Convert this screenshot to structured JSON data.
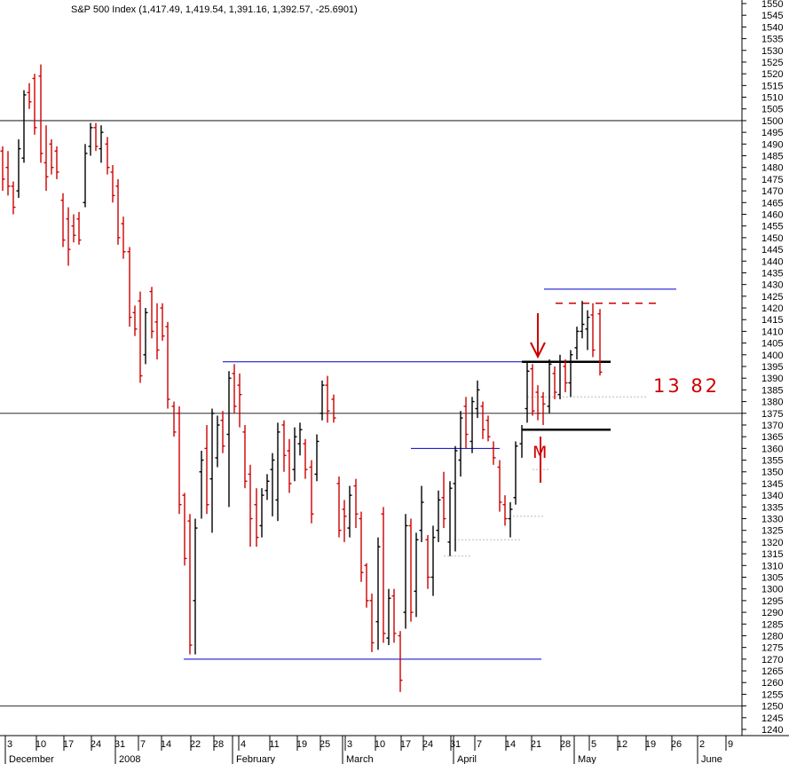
{
  "title": "S&P 500 Index (1,417.49, 1,419.54, 1,391.16, 1,392.57, -25.6901)",
  "chart_data": {
    "type": "ohlc",
    "title": "S&P 500 Index (1,417.49, 1,419.54, 1,391.16, 1,392.57, -25.6901)",
    "ylim": [
      1238,
      1552
    ],
    "y_ticks": [
      1240,
      1245,
      1250,
      1255,
      1260,
      1265,
      1270,
      1275,
      1280,
      1285,
      1290,
      1295,
      1300,
      1305,
      1310,
      1315,
      1320,
      1325,
      1330,
      1335,
      1340,
      1345,
      1350,
      1355,
      1360,
      1365,
      1370,
      1375,
      1380,
      1385,
      1390,
      1395,
      1400,
      1405,
      1410,
      1415,
      1420,
      1425,
      1430,
      1435,
      1440,
      1445,
      1450,
      1455,
      1460,
      1465,
      1470,
      1475,
      1480,
      1485,
      1490,
      1495,
      1500,
      1505,
      1510,
      1515,
      1520,
      1525,
      1530,
      1535,
      1540,
      1545,
      1550
    ],
    "x_ticks": [
      "3",
      "10",
      "17",
      "24",
      "31",
      "7",
      "14",
      "22",
      "28",
      "4",
      "11",
      "19",
      "25",
      "3",
      "10",
      "17",
      "24",
      "31",
      "7",
      "14",
      "21",
      "28",
      "5",
      "12",
      "19",
      "26",
      "2",
      "9"
    ],
    "month_labels": [
      "December",
      "2008",
      "February",
      "March",
      "April",
      "May",
      "June"
    ],
    "colors": {
      "up": "#000000",
      "down": "#cc0000",
      "line": "#0000cc",
      "ref": "#555555"
    },
    "bars": [
      {
        "x": 3,
        "o": 1487,
        "h": 1489,
        "l": 1470,
        "c": 1475
      },
      {
        "x": 9,
        "o": 1480,
        "h": 1487,
        "l": 1468,
        "c": 1472
      },
      {
        "x": 15,
        "o": 1472,
        "h": 1474,
        "l": 1460,
        "c": 1463
      },
      {
        "x": 21,
        "o": 1470,
        "h": 1492,
        "l": 1467,
        "c": 1488
      },
      {
        "x": 27,
        "o": 1484,
        "h": 1513,
        "l": 1482,
        "c": 1511
      },
      {
        "x": 33,
        "o": 1512,
        "h": 1516,
        "l": 1505,
        "c": 1508
      },
      {
        "x": 39,
        "o": 1518,
        "h": 1520,
        "l": 1494,
        "c": 1497
      },
      {
        "x": 46,
        "o": 1519,
        "h": 1524,
        "l": 1482,
        "c": 1486
      },
      {
        "x": 52,
        "o": 1482,
        "h": 1498,
        "l": 1470,
        "c": 1476
      },
      {
        "x": 58,
        "o": 1490,
        "h": 1492,
        "l": 1477,
        "c": 1480
      },
      {
        "x": 64,
        "o": 1487,
        "h": 1489,
        "l": 1475,
        "c": 1478
      },
      {
        "x": 71,
        "o": 1466,
        "h": 1469,
        "l": 1446,
        "c": 1449
      },
      {
        "x": 77,
        "o": 1458,
        "h": 1463,
        "l": 1438,
        "c": 1445
      },
      {
        "x": 83,
        "o": 1455,
        "h": 1460,
        "l": 1448,
        "c": 1451
      },
      {
        "x": 89,
        "o": 1458,
        "h": 1461,
        "l": 1447,
        "c": 1449
      },
      {
        "x": 96,
        "o": 1465,
        "h": 1490,
        "l": 1463,
        "c": 1486
      },
      {
        "x": 102,
        "o": 1489,
        "h": 1499,
        "l": 1485,
        "c": 1497
      },
      {
        "x": 108,
        "o": 1497,
        "h": 1499,
        "l": 1487,
        "c": 1489
      },
      {
        "x": 114,
        "o": 1488,
        "h": 1498,
        "l": 1482,
        "c": 1495
      },
      {
        "x": 121,
        "o": 1490,
        "h": 1493,
        "l": 1477,
        "c": 1480
      },
      {
        "x": 127,
        "o": 1478,
        "h": 1481,
        "l": 1465,
        "c": 1468
      },
      {
        "x": 133,
        "o": 1472,
        "h": 1475,
        "l": 1447,
        "c": 1450
      },
      {
        "x": 139,
        "o": 1456,
        "h": 1459,
        "l": 1441,
        "c": 1444
      },
      {
        "x": 146,
        "o": 1444,
        "h": 1446,
        "l": 1412,
        "c": 1416
      },
      {
        "x": 152,
        "o": 1418,
        "h": 1421,
        "l": 1408,
        "c": 1411
      },
      {
        "x": 158,
        "o": 1423,
        "h": 1427,
        "l": 1388,
        "c": 1391
      },
      {
        "x": 164,
        "o": 1400,
        "h": 1420,
        "l": 1396,
        "c": 1418
      },
      {
        "x": 171,
        "o": 1427,
        "h": 1429,
        "l": 1407,
        "c": 1410
      },
      {
        "x": 177,
        "o": 1414,
        "h": 1422,
        "l": 1398,
        "c": 1402
      },
      {
        "x": 183,
        "o": 1420,
        "h": 1422,
        "l": 1406,
        "c": 1408
      },
      {
        "x": 189,
        "o": 1412,
        "h": 1414,
        "l": 1377,
        "c": 1381
      },
      {
        "x": 196,
        "o": 1378,
        "h": 1380,
        "l": 1365,
        "c": 1367
      },
      {
        "x": 202,
        "o": 1375,
        "h": 1378,
        "l": 1332,
        "c": 1336
      },
      {
        "x": 208,
        "o": 1340,
        "h": 1341,
        "l": 1310,
        "c": 1313
      },
      {
        "x": 214,
        "o": 1329,
        "h": 1332,
        "l": 1272,
        "c": 1276
      },
      {
        "x": 220,
        "o": 1295,
        "h": 1330,
        "l": 1272,
        "c": 1326
      },
      {
        "x": 227,
        "o": 1350,
        "h": 1359,
        "l": 1330,
        "c": 1355
      },
      {
        "x": 233,
        "o": 1360,
        "h": 1370,
        "l": 1332,
        "c": 1336
      },
      {
        "x": 239,
        "o": 1347,
        "h": 1377,
        "l": 1324,
        "c": 1375
      },
      {
        "x": 245,
        "o": 1356,
        "h": 1374,
        "l": 1352,
        "c": 1370
      },
      {
        "x": 251,
        "o": 1372,
        "h": 1376,
        "l": 1358,
        "c": 1361
      },
      {
        "x": 258,
        "o": 1366,
        "h": 1393,
        "l": 1335,
        "c": 1390
      },
      {
        "x": 264,
        "o": 1392,
        "h": 1396,
        "l": 1375,
        "c": 1378
      },
      {
        "x": 270,
        "o": 1387,
        "h": 1392,
        "l": 1369,
        "c": 1383
      },
      {
        "x": 276,
        "o": 1367,
        "h": 1370,
        "l": 1343,
        "c": 1346
      },
      {
        "x": 282,
        "o": 1349,
        "h": 1353,
        "l": 1318,
        "c": 1330
      },
      {
        "x": 289,
        "o": 1336,
        "h": 1343,
        "l": 1318,
        "c": 1322
      },
      {
        "x": 295,
        "o": 1327,
        "h": 1343,
        "l": 1322,
        "c": 1340
      },
      {
        "x": 301,
        "o": 1342,
        "h": 1349,
        "l": 1338,
        "c": 1346
      },
      {
        "x": 307,
        "o": 1351,
        "h": 1358,
        "l": 1331,
        "c": 1355
      },
      {
        "x": 313,
        "o": 1338,
        "h": 1371,
        "l": 1329,
        "c": 1367
      },
      {
        "x": 320,
        "o": 1370,
        "h": 1372,
        "l": 1350,
        "c": 1357
      },
      {
        "x": 326,
        "o": 1359,
        "h": 1364,
        "l": 1341,
        "c": 1345
      },
      {
        "x": 332,
        "o": 1351,
        "h": 1369,
        "l": 1346,
        "c": 1365
      },
      {
        "x": 338,
        "o": 1362,
        "h": 1371,
        "l": 1357,
        "c": 1368
      },
      {
        "x": 344,
        "o": 1362,
        "h": 1364,
        "l": 1347,
        "c": 1351
      },
      {
        "x": 351,
        "o": 1352,
        "h": 1355,
        "l": 1328,
        "c": 1332
      },
      {
        "x": 357,
        "o": 1349,
        "h": 1366,
        "l": 1346,
        "c": 1363
      },
      {
        "x": 363,
        "o": 1375,
        "h": 1389,
        "l": 1372,
        "c": 1387
      },
      {
        "x": 369,
        "o": 1387,
        "h": 1391,
        "l": 1371,
        "c": 1376
      },
      {
        "x": 376,
        "o": 1381,
        "h": 1383,
        "l": 1371,
        "c": 1373
      },
      {
        "x": 382,
        "o": 1345,
        "h": 1348,
        "l": 1322,
        "c": 1325
      },
      {
        "x": 388,
        "o": 1334,
        "h": 1338,
        "l": 1320,
        "c": 1331
      },
      {
        "x": 394,
        "o": 1326,
        "h": 1344,
        "l": 1322,
        "c": 1340
      },
      {
        "x": 401,
        "o": 1344,
        "h": 1347,
        "l": 1326,
        "c": 1332
      },
      {
        "x": 407,
        "o": 1330,
        "h": 1333,
        "l": 1303,
        "c": 1307
      },
      {
        "x": 413,
        "o": 1310,
        "h": 1311,
        "l": 1292,
        "c": 1295
      },
      {
        "x": 419,
        "o": 1295,
        "h": 1298,
        "l": 1273,
        "c": 1277
      },
      {
        "x": 426,
        "o": 1286,
        "h": 1322,
        "l": 1274,
        "c": 1318
      },
      {
        "x": 432,
        "o": 1332,
        "h": 1335,
        "l": 1277,
        "c": 1281
      },
      {
        "x": 438,
        "o": 1279,
        "h": 1300,
        "l": 1276,
        "c": 1296
      },
      {
        "x": 444,
        "o": 1297,
        "h": 1300,
        "l": 1277,
        "c": 1281
      },
      {
        "x": 451,
        "o": 1280,
        "h": 1282,
        "l": 1256,
        "c": 1261
      },
      {
        "x": 457,
        "o": 1290,
        "h": 1332,
        "l": 1283,
        "c": 1327
      },
      {
        "x": 463,
        "o": 1327,
        "h": 1330,
        "l": 1286,
        "c": 1290
      },
      {
        "x": 469,
        "o": 1299,
        "h": 1324,
        "l": 1288,
        "c": 1321
      },
      {
        "x": 475,
        "o": 1325,
        "h": 1344,
        "l": 1320,
        "c": 1337
      },
      {
        "x": 482,
        "o": 1321,
        "h": 1323,
        "l": 1300,
        "c": 1305
      },
      {
        "x": 488,
        "o": 1305,
        "h": 1327,
        "l": 1297,
        "c": 1322
      },
      {
        "x": 494,
        "o": 1325,
        "h": 1342,
        "l": 1320,
        "c": 1338
      },
      {
        "x": 500,
        "o": 1339,
        "h": 1350,
        "l": 1326,
        "c": 1330
      },
      {
        "x": 507,
        "o": 1320,
        "h": 1346,
        "l": 1314,
        "c": 1343
      },
      {
        "x": 513,
        "o": 1345,
        "h": 1361,
        "l": 1316,
        "c": 1359
      },
      {
        "x": 519,
        "o": 1355,
        "h": 1376,
        "l": 1348,
        "c": 1373
      },
      {
        "x": 525,
        "o": 1378,
        "h": 1382,
        "l": 1360,
        "c": 1366
      },
      {
        "x": 532,
        "o": 1363,
        "h": 1382,
        "l": 1358,
        "c": 1380
      },
      {
        "x": 538,
        "o": 1377,
        "h": 1389,
        "l": 1373,
        "c": 1385
      },
      {
        "x": 544,
        "o": 1378,
        "h": 1380,
        "l": 1364,
        "c": 1368
      },
      {
        "x": 550,
        "o": 1372,
        "h": 1374,
        "l": 1363,
        "c": 1365
      },
      {
        "x": 556,
        "o": 1360,
        "h": 1363,
        "l": 1353,
        "c": 1356
      },
      {
        "x": 563,
        "o": 1352,
        "h": 1355,
        "l": 1333,
        "c": 1337
      },
      {
        "x": 569,
        "o": 1336,
        "h": 1340,
        "l": 1327,
        "c": 1330
      },
      {
        "x": 575,
        "o": 1330,
        "h": 1337,
        "l": 1322,
        "c": 1334
      },
      {
        "x": 581,
        "o": 1339,
        "h": 1363,
        "l": 1336,
        "c": 1361
      },
      {
        "x": 588,
        "o": 1362,
        "h": 1370,
        "l": 1356,
        "c": 1368
      },
      {
        "x": 594,
        "o": 1377,
        "h": 1397,
        "l": 1371,
        "c": 1393
      },
      {
        "x": 600,
        "o": 1394,
        "h": 1396,
        "l": 1374,
        "c": 1376
      },
      {
        "x": 606,
        "o": 1384,
        "h": 1387,
        "l": 1372,
        "c": 1375
      },
      {
        "x": 612,
        "o": 1382,
        "h": 1384,
        "l": 1370,
        "c": 1379
      },
      {
        "x": 619,
        "o": 1378,
        "h": 1398,
        "l": 1375,
        "c": 1396
      },
      {
        "x": 625,
        "o": 1392,
        "h": 1395,
        "l": 1381,
        "c": 1384
      },
      {
        "x": 631,
        "o": 1383,
        "h": 1400,
        "l": 1381,
        "c": 1397
      },
      {
        "x": 637,
        "o": 1395,
        "h": 1398,
        "l": 1384,
        "c": 1388
      },
      {
        "x": 643,
        "o": 1388,
        "h": 1402,
        "l": 1382,
        "c": 1400
      },
      {
        "x": 650,
        "o": 1403,
        "h": 1412,
        "l": 1398,
        "c": 1410
      },
      {
        "x": 656,
        "o": 1410,
        "h": 1423,
        "l": 1407,
        "c": 1413
      },
      {
        "x": 662,
        "o": 1411,
        "h": 1419,
        "l": 1402,
        "c": 1416
      },
      {
        "x": 668,
        "o": 1417,
        "h": 1422,
        "l": 1399,
        "c": 1402
      },
      {
        "x": 676,
        "o": 1417.49,
        "h": 1419.54,
        "l": 1391.16,
        "c": 1392.57
      }
    ],
    "levels": [
      {
        "y": 1500,
        "x1": 0,
        "x2": 836,
        "color": "ref",
        "width": 1.3
      },
      {
        "y": 1375,
        "x1": 0,
        "x2": 836,
        "color": "ref",
        "width": 1.3
      },
      {
        "y": 1250,
        "x1": 0,
        "x2": 836,
        "color": "ref",
        "width": 1.3
      },
      {
        "y": 1397,
        "x1": 251,
        "x2": 688,
        "color": "line",
        "width": 1
      },
      {
        "y": 1270,
        "x1": 207,
        "x2": 610,
        "color": "line",
        "width": 1
      },
      {
        "y": 1360,
        "x1": 463,
        "x2": 563,
        "color": "line",
        "width": 1
      },
      {
        "y": 1428,
        "x1": 613,
        "x2": 762,
        "color": "line",
        "width": 1
      }
    ],
    "heavy_levels": [
      {
        "y": 1397,
        "x1": 588,
        "x2": 688
      },
      {
        "y": 1368,
        "x1": 588,
        "x2": 688
      }
    ],
    "dotted_levels": [
      {
        "y": 1382,
        "x1": 594,
        "x2": 730
      },
      {
        "y": 1351,
        "x1": 600,
        "x2": 620
      },
      {
        "y": 1331,
        "x1": 578,
        "x2": 612
      },
      {
        "y": 1321,
        "x1": 512,
        "x2": 588
      },
      {
        "y": 1314,
        "x1": 500,
        "x2": 532
      }
    ],
    "dashed_level": {
      "y": 1422,
      "x1": 626,
      "x2": 745
    },
    "annotations": {
      "note": "13 82",
      "mark": "M"
    }
  }
}
